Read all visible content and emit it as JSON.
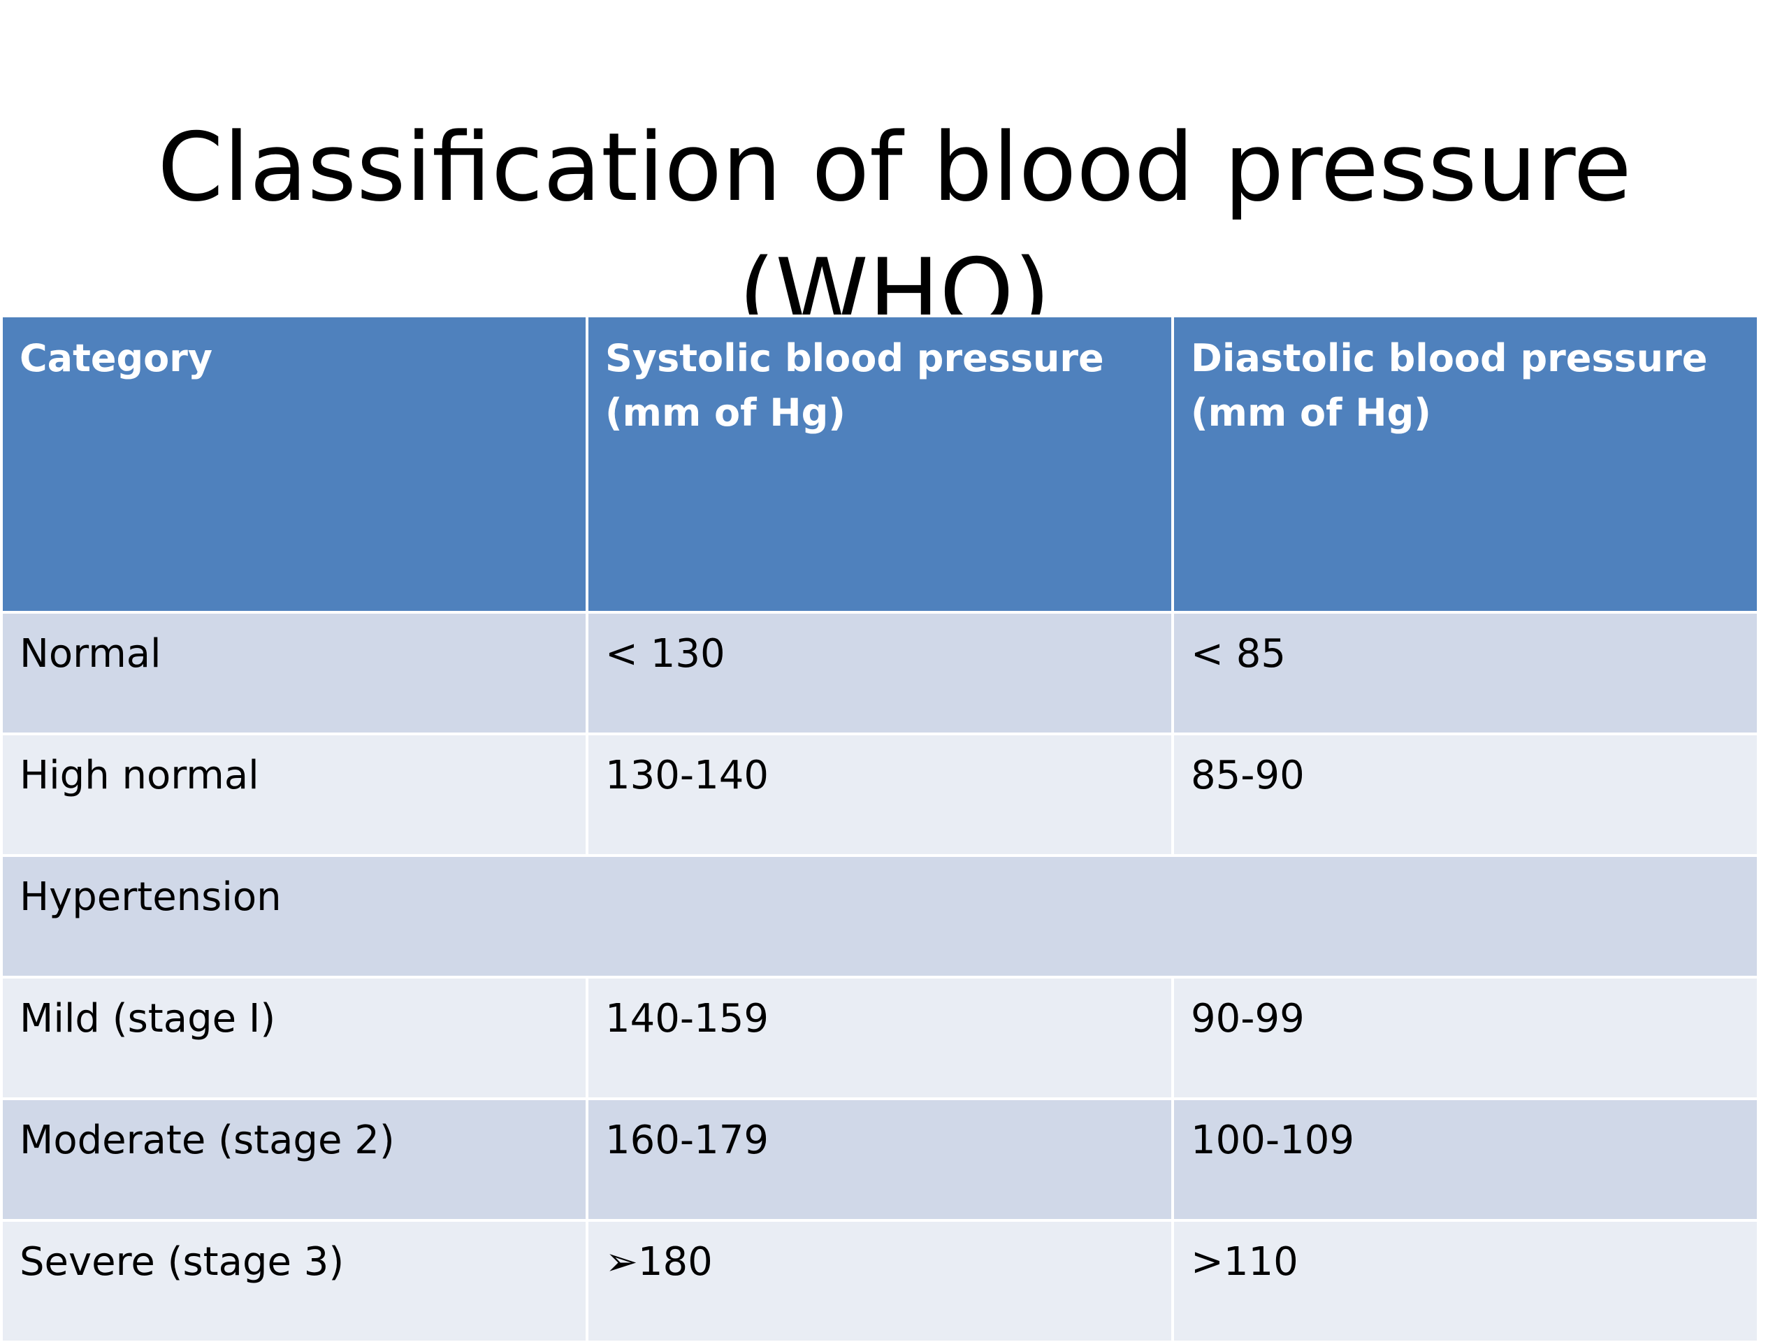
{
  "title": "Classification of blood pressure (WHO)",
  "colors": {
    "header_bg": "#4f81bd",
    "row_dark": "#d0d8e8",
    "row_light": "#e9edf4"
  },
  "table": {
    "headers": [
      "Category",
      "Systolic blood pressure (mm of Hg)",
      "Diastolic blood pressure (mm of Hg)"
    ],
    "rows": [
      [
        "Normal",
        "< 130",
        "< 85"
      ],
      [
        "High normal",
        "130-140",
        "85-90"
      ],
      [
        "Hypertension",
        "",
        ""
      ],
      [
        "Mild (stage I)",
        "140-159",
        "90-99"
      ],
      [
        "Moderate (stage 2)",
        "160-179",
        "100-109"
      ],
      [
        "Severe (stage 3)",
        "➢180",
        ">110"
      ]
    ]
  }
}
